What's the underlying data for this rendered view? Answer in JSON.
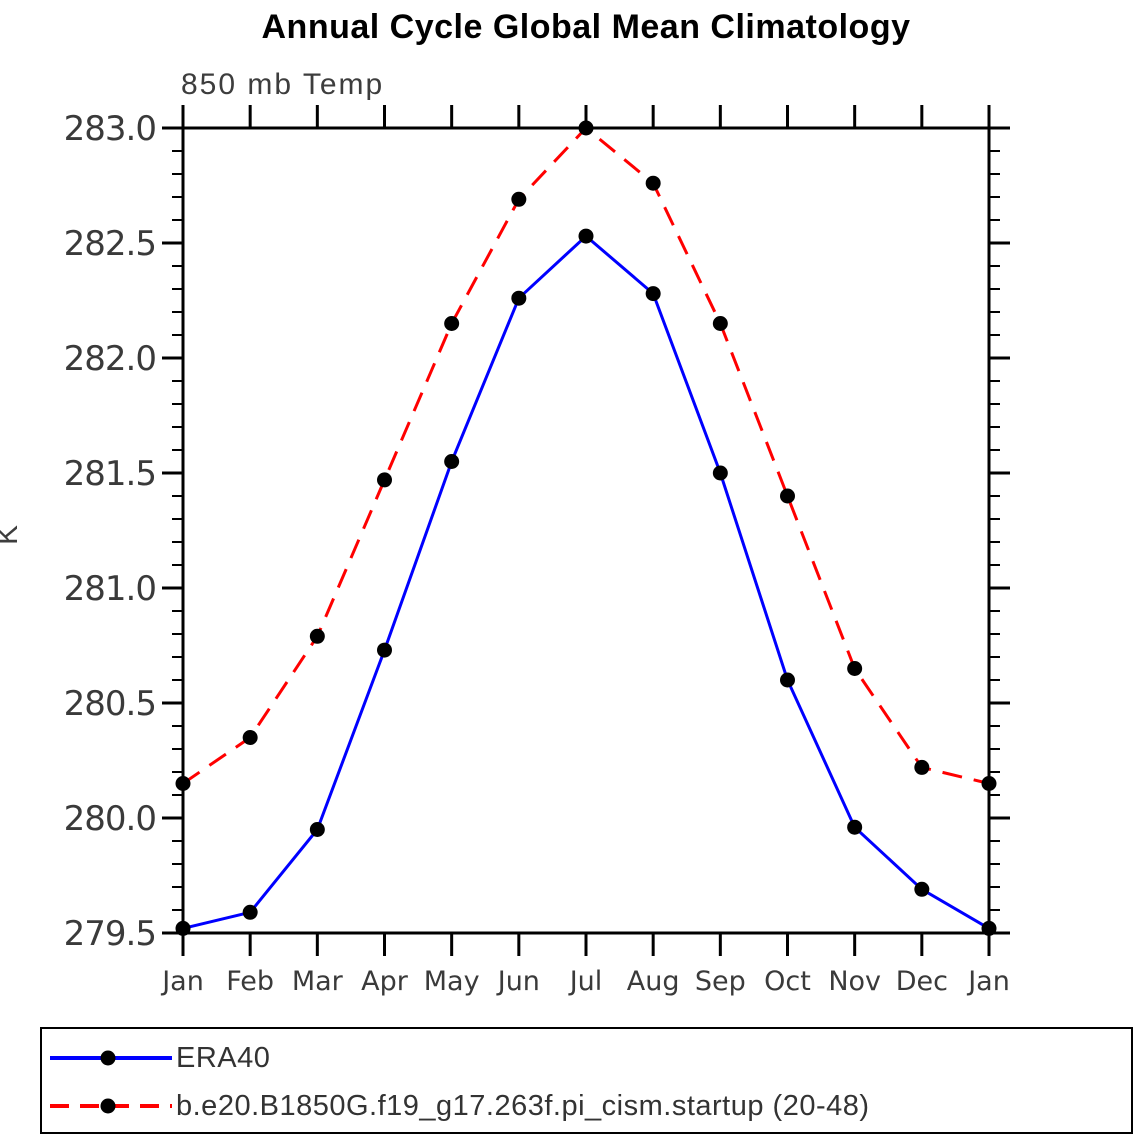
{
  "title": "Annual Cycle Global Mean Climatology",
  "subtitle": "850 mb Temp",
  "ylabel": "K",
  "colors": {
    "era40_line": "#0000ff",
    "model_line": "#ff0000",
    "marker": "#000000",
    "axis": "#000000",
    "tick_text": "#3a3a3a"
  },
  "legend": {
    "position": "bottom-box",
    "items": [
      {
        "label": "ERA40"
      },
      {
        "label": "b.e20.B1850G.f19_g17.263f.pi_cism.startup (20-48)"
      }
    ]
  },
  "chart_data": {
    "type": "line",
    "title": "Annual Cycle Global Mean Climatology",
    "subtitle": "850 mb Temp",
    "xlabel": "",
    "ylabel": "K",
    "categories": [
      "Jan",
      "Feb",
      "Mar",
      "Apr",
      "May",
      "Jun",
      "Jul",
      "Aug",
      "Sep",
      "Oct",
      "Nov",
      "Dec",
      "Jan"
    ],
    "series": [
      {
        "name": "ERA40",
        "color": "#0000ff",
        "line_style": "solid",
        "marker": "filled-circle",
        "marker_color": "#000000",
        "values": [
          279.52,
          279.59,
          279.95,
          280.73,
          281.55,
          282.26,
          282.53,
          282.28,
          281.5,
          280.6,
          279.96,
          279.69,
          279.52
        ]
      },
      {
        "name": "b.e20.B1850G.f19_g17.263f.pi_cism.startup (20-48)",
        "color": "#ff0000",
        "line_style": "dashed",
        "marker": "filled-circle",
        "marker_color": "#000000",
        "values": [
          280.15,
          280.35,
          280.79,
          281.47,
          282.15,
          282.69,
          283.0,
          282.76,
          282.15,
          281.4,
          280.65,
          280.22,
          280.15
        ]
      }
    ],
    "ylim": [
      279.5,
      283.0
    ],
    "yticks": [
      279.5,
      280.0,
      280.5,
      281.0,
      281.5,
      282.0,
      282.5,
      283.0
    ],
    "ytick_labels": [
      "279.5",
      "280.0",
      "280.5",
      "281.0",
      "281.5",
      "282.0",
      "282.5",
      "283.0"
    ],
    "yminor_interval": 0.1,
    "grid": false,
    "frame": "box-with-outward-ticks",
    "legend_position": "bottom"
  }
}
